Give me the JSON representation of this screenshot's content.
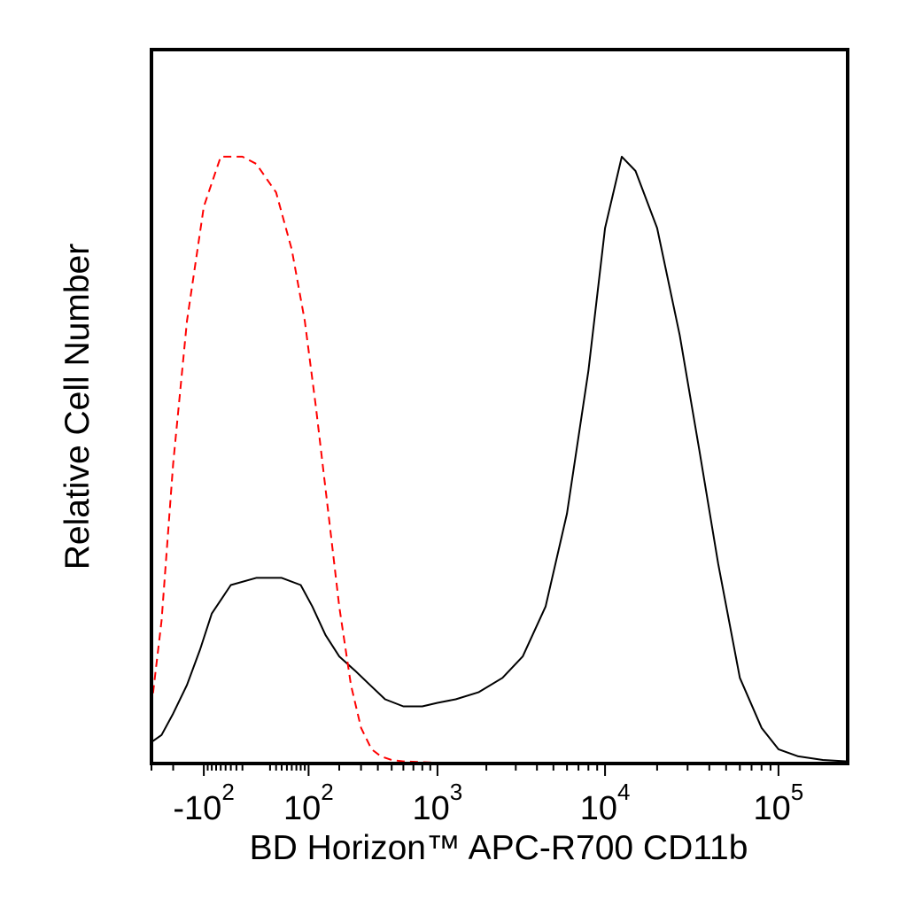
{
  "chart_data": {
    "type": "line",
    "title": "",
    "xlabel": "BD Horizon™ APC-R700 CD11b",
    "ylabel": "Relative Cell Number",
    "xscale": "biexponential (log above 10^2, linear around 0)",
    "xlim": [
      -300,
      250000
    ],
    "ylim": [
      0,
      100
    ],
    "x_ticks": [
      {
        "value": -100,
        "base": "-10",
        "exp": "2"
      },
      {
        "value": 100,
        "base": "10",
        "exp": "2"
      },
      {
        "value": 1000,
        "base": "10",
        "exp": "3"
      },
      {
        "value": 10000,
        "base": "10",
        "exp": "4"
      },
      {
        "value": 100000,
        "base": "10",
        "exp": "5"
      }
    ],
    "grid": false,
    "legend": "none",
    "series": [
      {
        "color": "#000000",
        "style": "solid",
        "x": [
          -300,
          -250,
          -200,
          -150,
          -110,
          -80,
          -40,
          0,
          40,
          80,
          110,
          150,
          200,
          270,
          350,
          450,
          600,
          800,
          1000,
          1300,
          1800,
          2500,
          3300,
          4500,
          6000,
          8000,
          10000,
          12500,
          15000,
          20000,
          27000,
          35000,
          45000,
          60000,
          80000,
          100000,
          130000,
          180000,
          250000
        ],
        "values": [
          3,
          4,
          7,
          11,
          16,
          21,
          25,
          26,
          26,
          25,
          22,
          18,
          15,
          13,
          11,
          9,
          8,
          8,
          8.5,
          9,
          10,
          12,
          15,
          22,
          35,
          55,
          75,
          85,
          83,
          75,
          60,
          44,
          28,
          12,
          5,
          2,
          1,
          0.5,
          0.3
        ]
      },
      {
        "color": "#ff0000",
        "style": "dashed",
        "x": [
          -300,
          -250,
          -200,
          -150,
          -100,
          -60,
          -20,
          0,
          30,
          60,
          90,
          120,
          160,
          200,
          250,
          300,
          360,
          420,
          500,
          600,
          800,
          1000,
          3000,
          10000,
          100000,
          250000
        ],
        "values": [
          8,
          20,
          42,
          62,
          78,
          85,
          85,
          84,
          80,
          72,
          62,
          50,
          35,
          22,
          11,
          5,
          2,
          1,
          0.5,
          0.3,
          0.2,
          0.1,
          0.1,
          0.1,
          0.1,
          0.1
        ]
      }
    ]
  }
}
